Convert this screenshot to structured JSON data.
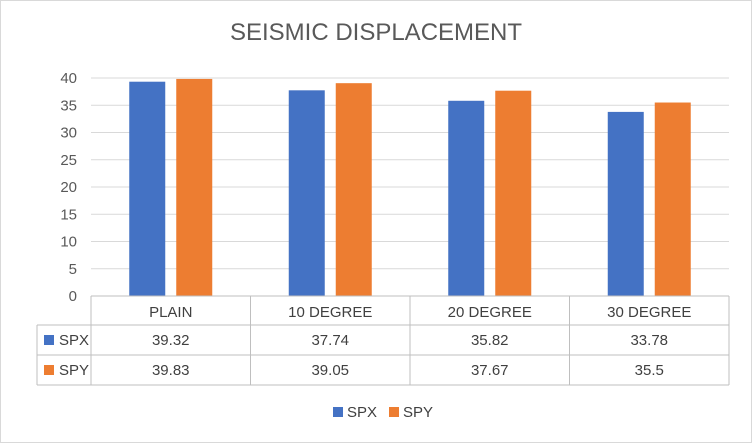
{
  "chart_data": {
    "type": "bar",
    "title": "SEISMIC DISPLACEMENT",
    "xlabel": "",
    "ylabel": "",
    "categories": [
      "PLAIN",
      "10 DEGREE",
      "20 DEGREE",
      "30 DEGREE"
    ],
    "series": [
      {
        "name": "SPX",
        "values": [
          39.32,
          37.74,
          35.82,
          33.78
        ],
        "color": "#4472c4"
      },
      {
        "name": "SPY",
        "values": [
          39.83,
          39.05,
          37.67,
          35.5
        ],
        "color": "#ed7d31"
      }
    ],
    "ylim": [
      0,
      40
    ],
    "yticks": [
      0,
      5,
      10,
      15,
      20,
      25,
      30,
      35,
      40
    ],
    "grid": true,
    "data_table": true,
    "legend": "bottom"
  }
}
